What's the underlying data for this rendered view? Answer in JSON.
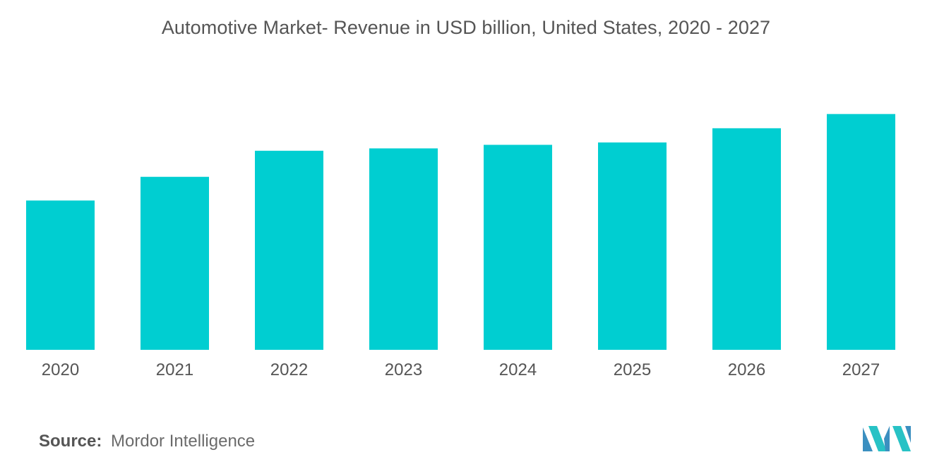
{
  "chart_data": {
    "type": "bar",
    "title": "Automotive Market- Revenue in USD billion, United States, 2020 - 2027",
    "categories": [
      "2020",
      "2021",
      "2022",
      "2023",
      "2024",
      "2025",
      "2026",
      "2027"
    ],
    "values": [
      63,
      73,
      84,
      85,
      86.5,
      87.5,
      93.5,
      99.5
    ],
    "xlabel": "",
    "ylabel": "",
    "ylim": [
      0,
      100
    ],
    "grid": false,
    "legend": "none",
    "bar_color": "#00CED1"
  },
  "source": {
    "label": "Source:",
    "text": "Mordor Intelligence"
  },
  "logo": {
    "icon": "mordor-intelligence-logo-icon",
    "colors": [
      "#3B8FC0",
      "#28C2C5"
    ]
  }
}
